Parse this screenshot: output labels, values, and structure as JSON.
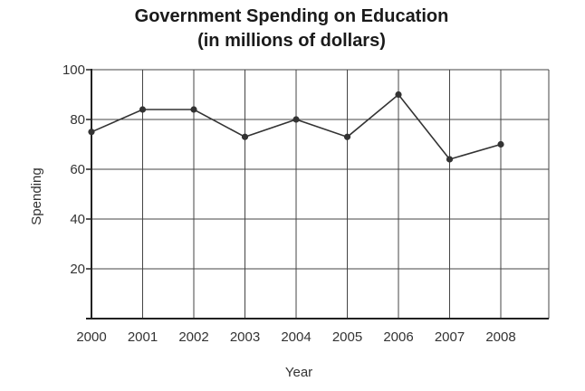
{
  "chart_data": {
    "type": "line",
    "title": "Government Spending on Education",
    "subtitle": "(in millions of dollars)",
    "xlabel": "Year",
    "ylabel": "Spending",
    "x": [
      "2000",
      "2001",
      "2002",
      "2003",
      "2004",
      "2005",
      "2006",
      "2007",
      "2008"
    ],
    "series": [
      {
        "values": [
          75,
          84,
          84,
          73,
          80,
          73,
          90,
          64,
          70
        ]
      }
    ],
    "ylim": [
      0,
      100
    ],
    "yticks": [
      "20",
      "40",
      "60",
      "80",
      "100"
    ],
    "grid": true,
    "legend": "none",
    "colors": {
      "line": "#333333",
      "grid": "#444444",
      "axis": "#222222"
    }
  }
}
